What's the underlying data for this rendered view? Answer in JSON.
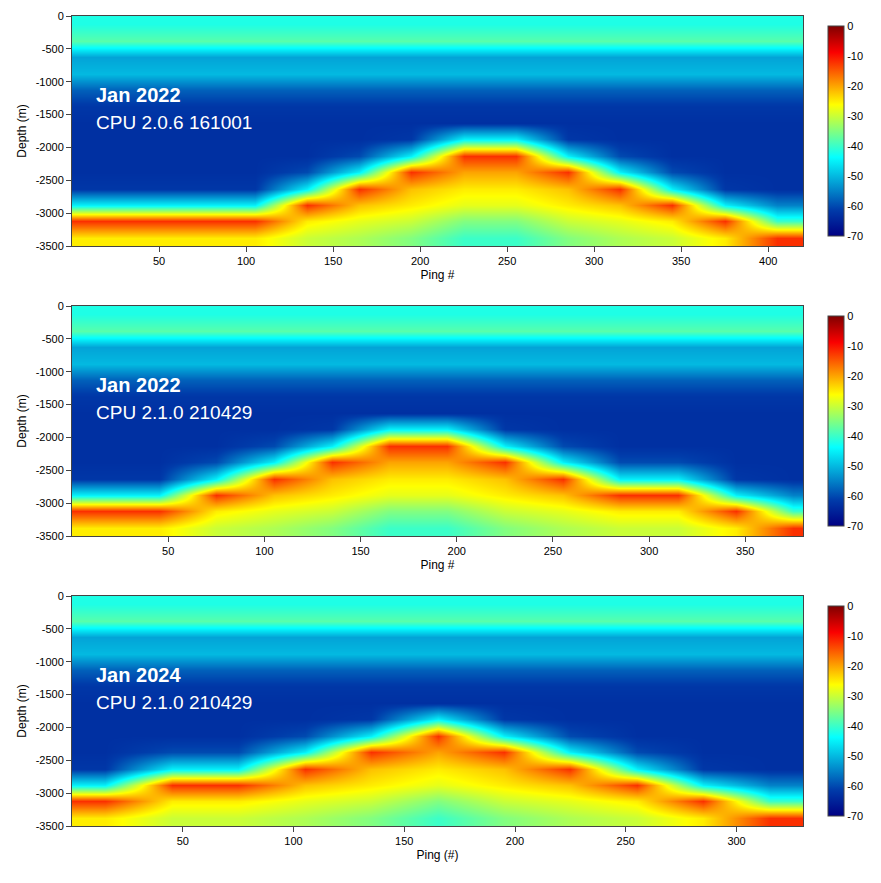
{
  "chart_data": [
    {
      "type": "heatmap",
      "label": "Jan 2022",
      "sublabel": "CPU 2.0.6 161001",
      "x_label": "Ping #",
      "y_label": "Depth (m)",
      "color": "Jet",
      "x": [
        15,
        45,
        75,
        105,
        135,
        165,
        195,
        225,
        255,
        285,
        315,
        345,
        375,
        405
      ],
      "y": [
        -3375,
        -3125,
        -2875,
        -2625,
        -2375,
        -2125,
        -1875,
        -1625,
        -1375,
        -1125,
        -875,
        -625,
        -375,
        -125
      ],
      "z": [
        [
          -25,
          -25,
          -25,
          -25,
          -30,
          -32,
          -35,
          -40,
          -40,
          -35,
          -32,
          -30,
          -25,
          -12
        ],
        [
          -12,
          -12,
          -12,
          -12,
          -25,
          -28,
          -30,
          -35,
          -35,
          -30,
          -28,
          -25,
          -12,
          -40
        ],
        [
          -45,
          -45,
          -45,
          -45,
          -12,
          -22,
          -25,
          -28,
          -28,
          -25,
          -22,
          -12,
          -45,
          -55
        ],
        [
          -62,
          -62,
          -62,
          -62,
          -45,
          -12,
          -22,
          -25,
          -25,
          -22,
          -12,
          -45,
          -62,
          -63
        ],
        [
          -63,
          -63,
          -63,
          -63,
          -60,
          -45,
          -12,
          -20,
          -20,
          -12,
          -45,
          -60,
          -63,
          -63
        ],
        [
          -63,
          -63,
          -63,
          -63,
          -63,
          -60,
          -45,
          -12,
          -12,
          -45,
          -60,
          -63,
          -63,
          -63
        ],
        [
          -63,
          -63,
          -63,
          -63,
          -63,
          -63,
          -62,
          -45,
          -45,
          -62,
          -63,
          -63,
          -63,
          -63
        ],
        [
          -63,
          -63,
          -63,
          -63,
          -63,
          -63,
          -63,
          -63,
          -63,
          -63,
          -63,
          -63,
          -63,
          -63
        ],
        [
          -62,
          -62,
          -62,
          -62,
          -62,
          -62,
          -62,
          -62,
          -62,
          -62,
          -62,
          -62,
          -62,
          -62
        ],
        [
          -58,
          -58,
          -58,
          -58,
          -58,
          -58,
          -58,
          -58,
          -58,
          -58,
          -58,
          -58,
          -58,
          -58
        ],
        [
          -50,
          -50,
          -50,
          -50,
          -50,
          -50,
          -50,
          -50,
          -50,
          -50,
          -50,
          -50,
          -50,
          -50
        ],
        [
          -52,
          -52,
          -52,
          -52,
          -52,
          -52,
          -52,
          -52,
          -52,
          -52,
          -52,
          -52,
          -52,
          -52
        ],
        [
          -38,
          -38,
          -38,
          -38,
          -38,
          -38,
          -38,
          -38,
          -38,
          -38,
          -38,
          -38,
          -38,
          -38
        ],
        [
          -42,
          -42,
          -42,
          -42,
          -42,
          -42,
          -42,
          -42,
          -42,
          -42,
          -42,
          -42,
          -42,
          -42
        ]
      ],
      "xlim": [
        0,
        420
      ],
      "xticks": [
        50,
        100,
        150,
        200,
        250,
        300,
        350,
        400
      ],
      "ylim": [
        -3500,
        0
      ],
      "yticks": [
        -3500,
        -3000,
        -2500,
        -2000,
        -1500,
        -1000,
        -500,
        0
      ],
      "zlim": [
        -70,
        0
      ],
      "colorbar_ticks": [
        -70,
        -60,
        -50,
        -40,
        -30,
        -20,
        -10,
        0
      ],
      "grid": false
    },
    {
      "type": "heatmap",
      "label": "Jan 2022",
      "sublabel": "CPU 2.1.0 210429",
      "x_label": "Ping #",
      "y_label": "Depth (m)",
      "color": "Jet",
      "x": [
        15,
        45,
        75,
        105,
        135,
        165,
        195,
        225,
        255,
        285,
        315,
        345,
        375
      ],
      "y": [
        -3375,
        -3125,
        -2875,
        -2625,
        -2375,
        -2125,
        -1875,
        -1625,
        -1375,
        -1125,
        -875,
        -625,
        -375,
        -125
      ],
      "z": [
        [
          -25,
          -25,
          -30,
          -32,
          -35,
          -40,
          -40,
          -35,
          -32,
          -30,
          -30,
          -25,
          -12
        ],
        [
          -12,
          -12,
          -25,
          -28,
          -30,
          -35,
          -35,
          -30,
          -28,
          -25,
          -25,
          -12,
          -40
        ],
        [
          -45,
          -45,
          -12,
          -22,
          -25,
          -28,
          -28,
          -25,
          -22,
          -12,
          -12,
          -45,
          -55
        ],
        [
          -62,
          -62,
          -45,
          -12,
          -22,
          -25,
          -25,
          -22,
          -12,
          -45,
          -45,
          -62,
          -63
        ],
        [
          -63,
          -63,
          -60,
          -45,
          -12,
          -20,
          -20,
          -12,
          -45,
          -60,
          -60,
          -63,
          -63
        ],
        [
          -63,
          -63,
          -63,
          -60,
          -45,
          -12,
          -12,
          -45,
          -60,
          -63,
          -63,
          -63,
          -63
        ],
        [
          -63,
          -63,
          -63,
          -63,
          -62,
          -45,
          -45,
          -62,
          -63,
          -63,
          -63,
          -63,
          -63
        ],
        [
          -63,
          -63,
          -63,
          -63,
          -63,
          -63,
          -63,
          -63,
          -63,
          -63,
          -63,
          -63,
          -63
        ],
        [
          -62,
          -62,
          -62,
          -62,
          -62,
          -62,
          -62,
          -62,
          -62,
          -62,
          -62,
          -62,
          -62
        ],
        [
          -58,
          -58,
          -58,
          -58,
          -58,
          -58,
          -58,
          -58,
          -58,
          -58,
          -58,
          -58,
          -58
        ],
        [
          -50,
          -50,
          -50,
          -50,
          -50,
          -50,
          -50,
          -50,
          -50,
          -50,
          -50,
          -50,
          -50
        ],
        [
          -52,
          -52,
          -52,
          -52,
          -52,
          -52,
          -52,
          -52,
          -52,
          -52,
          -52,
          -52,
          -52
        ],
        [
          -38,
          -38,
          -38,
          -38,
          -38,
          -38,
          -38,
          -38,
          -38,
          -38,
          -38,
          -38,
          -38
        ],
        [
          -42,
          -42,
          -42,
          -42,
          -42,
          -42,
          -42,
          -42,
          -42,
          -42,
          -42,
          -42,
          -42
        ]
      ],
      "xlim": [
        0,
        380
      ],
      "xticks": [
        50,
        100,
        150,
        200,
        250,
        300,
        350
      ],
      "ylim": [
        -3500,
        0
      ],
      "yticks": [
        -3500,
        -3000,
        -2500,
        -2000,
        -1500,
        -1000,
        -500,
        0
      ],
      "zlim": [
        -70,
        0
      ],
      "colorbar_ticks": [
        -70,
        -60,
        -50,
        -40,
        -30,
        -20,
        -10,
        0
      ],
      "grid": false
    },
    {
      "type": "heatmap",
      "label": "Jan 2024",
      "sublabel": "CPU 2.1.0 210429",
      "x_label": "Ping (#)",
      "y_label": "Depth (m)",
      "color": "Jet",
      "x": [
        15,
        45,
        75,
        105,
        135,
        165,
        195,
        225,
        255,
        285,
        315
      ],
      "y": [
        -3375,
        -3125,
        -2875,
        -2625,
        -2375,
        -2125,
        -1875,
        -1625,
        -1375,
        -1125,
        -875,
        -625,
        -375,
        -125
      ],
      "z": [
        [
          -25,
          -30,
          -30,
          -32,
          -35,
          -40,
          -35,
          -32,
          -30,
          -25,
          -12
        ],
        [
          -12,
          -25,
          -25,
          -28,
          -30,
          -35,
          -30,
          -28,
          -25,
          -12,
          -40
        ],
        [
          -45,
          -12,
          -12,
          -22,
          -25,
          -28,
          -25,
          -22,
          -12,
          -45,
          -55
        ],
        [
          -62,
          -45,
          -45,
          -12,
          -22,
          -25,
          -22,
          -12,
          -45,
          -62,
          -63
        ],
        [
          -63,
          -60,
          -60,
          -45,
          -12,
          -20,
          -12,
          -45,
          -60,
          -63,
          -63
        ],
        [
          -63,
          -63,
          -63,
          -60,
          -45,
          -12,
          -45,
          -60,
          -63,
          -63,
          -63
        ],
        [
          -63,
          -63,
          -63,
          -63,
          -62,
          -45,
          -62,
          -63,
          -63,
          -63,
          -63
        ],
        [
          -63,
          -63,
          -63,
          -63,
          -63,
          -63,
          -63,
          -63,
          -63,
          -63,
          -63
        ],
        [
          -62,
          -62,
          -62,
          -62,
          -62,
          -62,
          -62,
          -62,
          -62,
          -62,
          -62
        ],
        [
          -58,
          -58,
          -58,
          -58,
          -58,
          -58,
          -58,
          -58,
          -58,
          -58,
          -58
        ],
        [
          -50,
          -50,
          -50,
          -50,
          -50,
          -50,
          -50,
          -50,
          -50,
          -50,
          -50
        ],
        [
          -52,
          -52,
          -52,
          -52,
          -52,
          -52,
          -52,
          -52,
          -52,
          -52,
          -52
        ],
        [
          -38,
          -38,
          -38,
          -38,
          -38,
          -38,
          -38,
          -38,
          -38,
          -38,
          -38
        ],
        [
          -42,
          -42,
          -42,
          -42,
          -42,
          -42,
          -42,
          -42,
          -42,
          -42,
          -42
        ]
      ],
      "xlim": [
        0,
        330
      ],
      "xticks": [
        50,
        100,
        150,
        200,
        250,
        300
      ],
      "ylim": [
        -3500,
        0
      ],
      "yticks": [
        -3500,
        -3000,
        -2500,
        -2000,
        -1500,
        -1000,
        -500,
        0
      ],
      "zlim": [
        -70,
        0
      ],
      "colorbar_ticks": [
        -70,
        -60,
        -50,
        -40,
        -30,
        -20,
        -10,
        0
      ],
      "grid": false
    }
  ]
}
